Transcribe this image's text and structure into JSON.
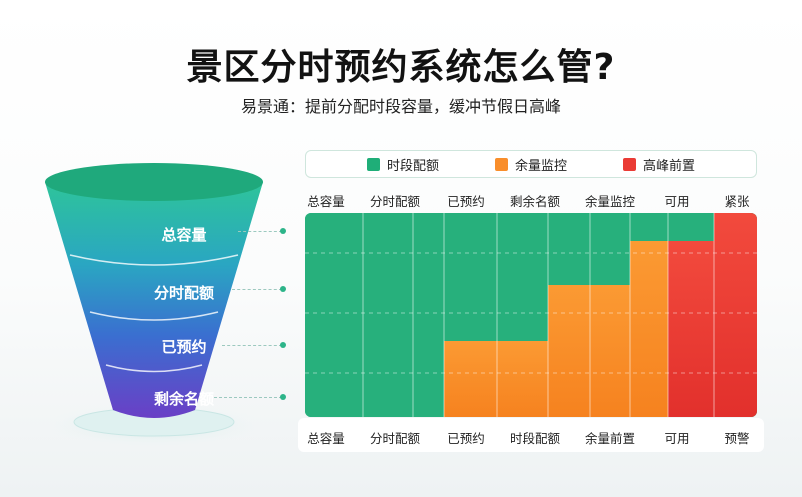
{
  "title": "景区分时预约系统怎么管?",
  "subtitle": "易景通：提前分配时段容量，缓冲节假日高峰",
  "funnel": {
    "levels": [
      "总容量",
      "分时配额",
      "已预约",
      "剩余名额"
    ]
  },
  "legend": [
    {
      "label": "时段配额",
      "color": "#1fae78"
    },
    {
      "label": "余量监控",
      "color": "#f98e2b"
    },
    {
      "label": "高峰前置",
      "color": "#ea3b35"
    }
  ],
  "chart": {
    "top_labels": [
      "总容量",
      "分时配额",
      "已预约",
      "剩余名额",
      "余量监控",
      "可用",
      "紧张"
    ],
    "bottom_labels": [
      "总容量",
      "分时配额",
      "已预约",
      "时段配额",
      "余量前置",
      "可用",
      "预警"
    ]
  }
}
